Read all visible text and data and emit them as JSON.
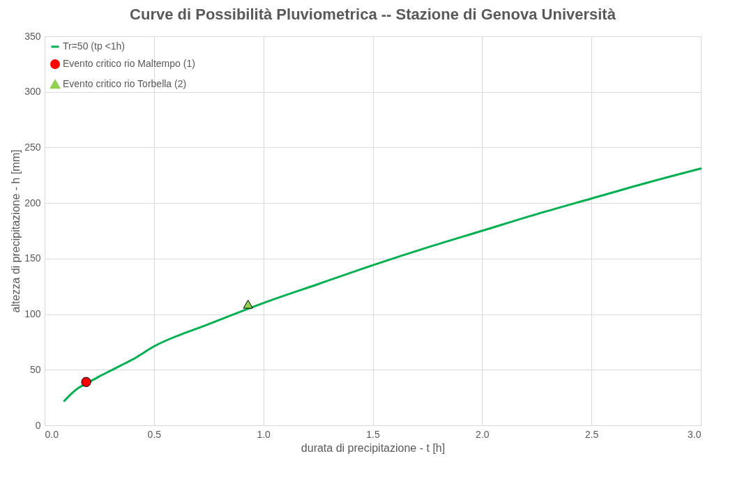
{
  "chart_data": {
    "type": "line",
    "title": "Curve di Possibilità Pluviometrica -- Stazione di Genova Università",
    "xlabel": "durata di precipitazione - t [h]",
    "ylabel": "altezza di precipitazione - h [mm]",
    "xlim": [
      0,
      3
    ],
    "xticks": [
      {
        "value": 0,
        "label": "0.0"
      },
      {
        "value": 0.5,
        "label": "0.5"
      },
      {
        "value": 1,
        "label": "1.0"
      },
      {
        "value": 1.5,
        "label": "1.5"
      },
      {
        "value": 2,
        "label": "2.0"
      },
      {
        "value": 2.5,
        "label": "2.5"
      },
      {
        "value": 3,
        "label": "3.0"
      }
    ],
    "ylim": [
      0,
      350
    ],
    "yticks": [
      0,
      50,
      100,
      150,
      200,
      250,
      300,
      350
    ],
    "grid": true,
    "legend": "top left",
    "series": [
      {
        "name": "Tr=50 (tp <1h)",
        "color": "#00b050",
        "marker": "none",
        "x": [
          0.09,
          0.125,
          0.15,
          0.2,
          0.25,
          0.3,
          0.35,
          0.4,
          0.5,
          0.75,
          1.0,
          1.25,
          1.5,
          1.75,
          2.0,
          2.25,
          2.5,
          2.75,
          3.0
        ],
        "values": [
          22,
          29,
          33,
          38.5,
          44,
          49,
          54,
          59,
          71,
          91,
          110,
          127,
          144,
          160,
          175,
          190,
          204,
          218,
          231
        ]
      },
      {
        "name": "Evento critico rio Maltempo (1)",
        "type": "scatter",
        "color": "#ff0000",
        "marker": "circle",
        "x": [
          0.19
        ],
        "values": [
          39
        ]
      },
      {
        "name": "Evento critico rio Torbella (2)",
        "type": "scatter",
        "color": "#92d050",
        "marker": "triangle",
        "x": [
          0.93
        ],
        "values": [
          109
        ]
      }
    ]
  }
}
